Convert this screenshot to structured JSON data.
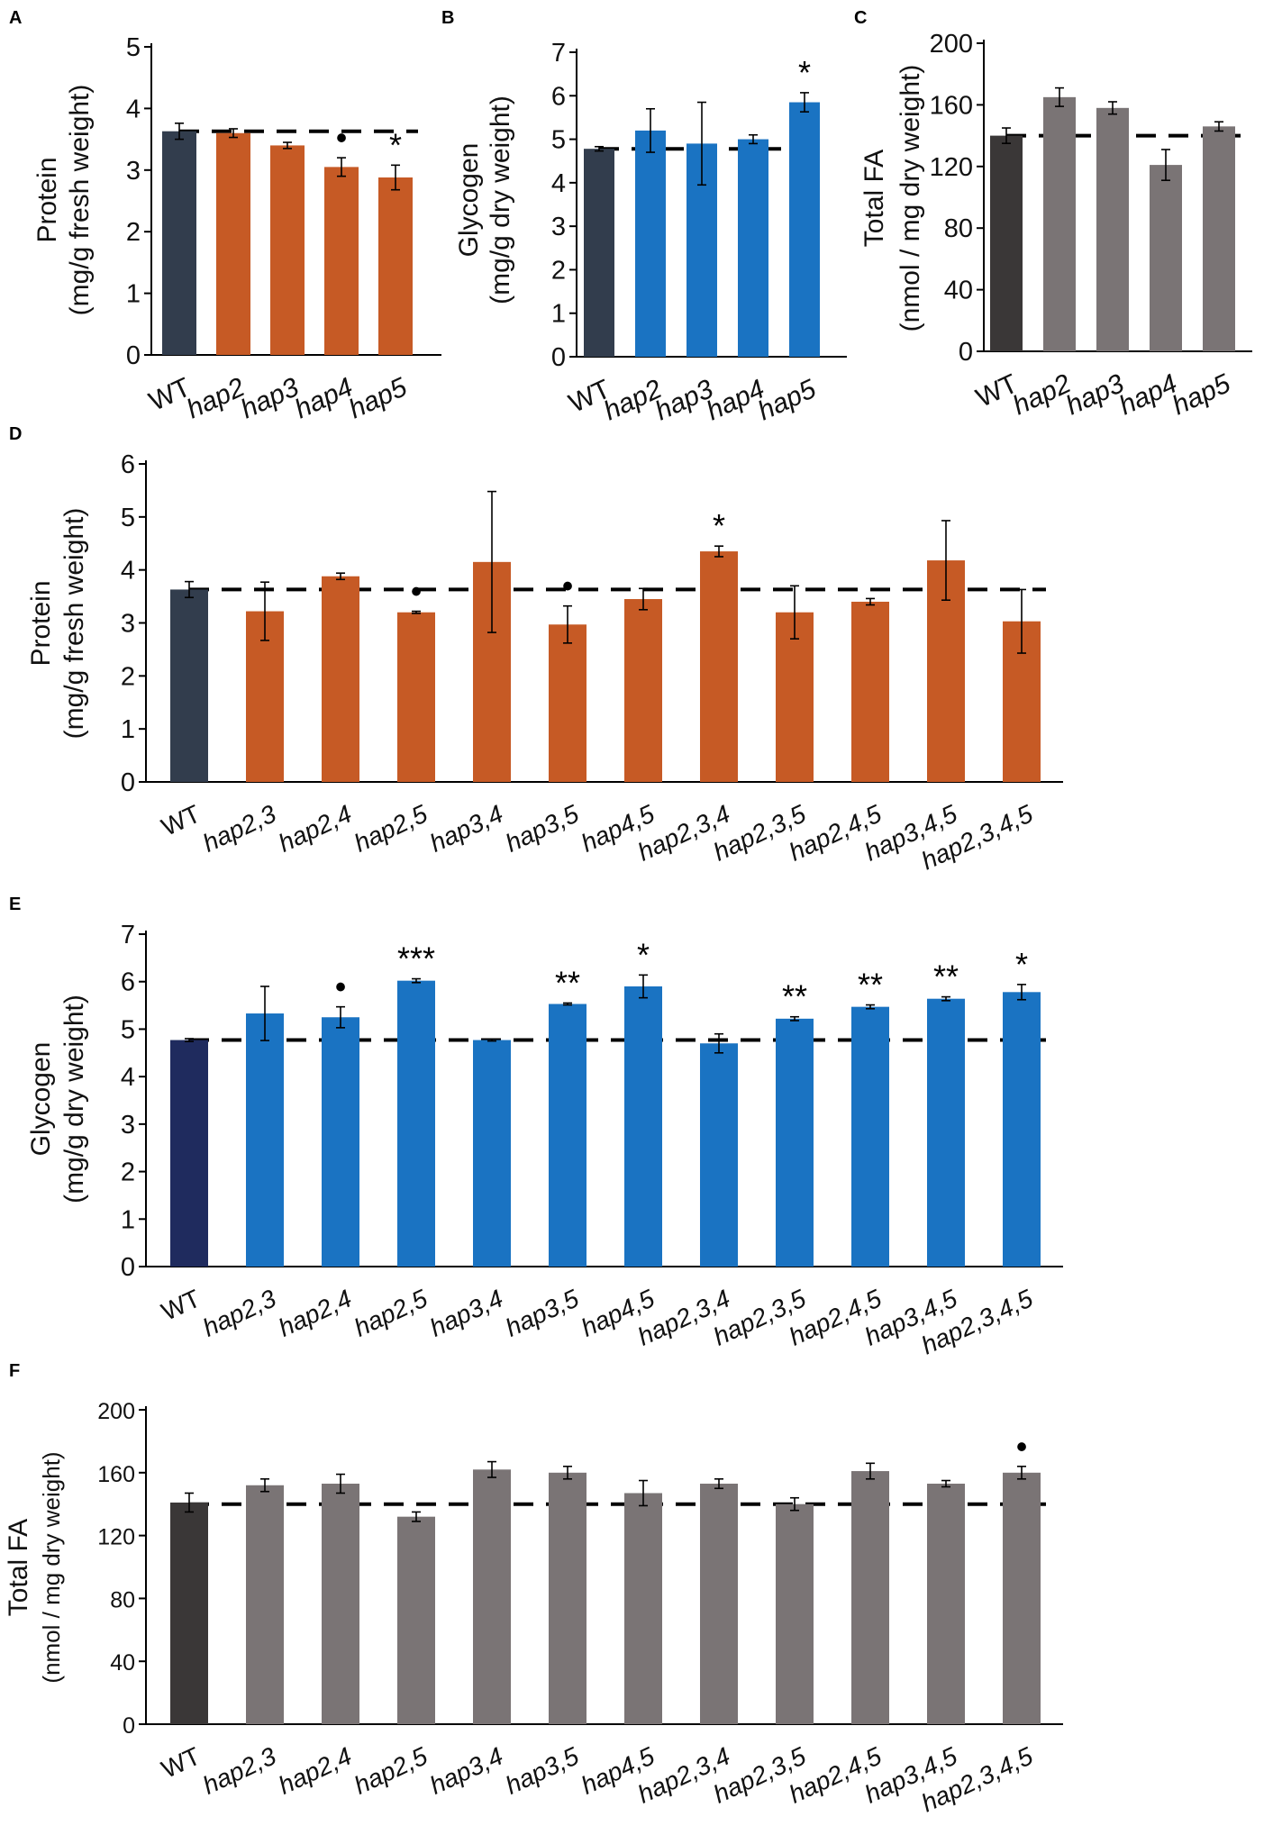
{
  "colors": {
    "wt_dark": "#323d4d",
    "wt_navy": "#1f2b5e",
    "wt_charcoal": "#3a3737",
    "orange": "#c65a25",
    "blue": "#1a73c2",
    "gray": "#7a7475",
    "axis": "#000000"
  },
  "chart_data": [
    {
      "id": "A",
      "letter": "A",
      "type": "bar",
      "title": "",
      "ylabel": [
        "Protein",
        "(mg/g fresh weight)"
      ],
      "ylim": [
        0,
        5
      ],
      "yticks": [
        "0",
        "1",
        "2",
        "3",
        "4",
        "5"
      ],
      "categories": [
        "WT",
        "hap2",
        "hap3",
        "hap4",
        "hap5"
      ],
      "values": [
        3.63,
        3.6,
        3.4,
        3.05,
        2.88
      ],
      "errors": [
        0.13,
        0.07,
        0.05,
        0.15,
        0.2
      ],
      "annotations": [
        "",
        "",
        "",
        "•",
        "*"
      ],
      "reference": 3.63,
      "wt_color": "wt_dark",
      "bar_color": "orange"
    },
    {
      "id": "B",
      "letter": "B",
      "type": "bar",
      "title": "",
      "ylabel": [
        "Glycogen",
        "(mg/g dry weight)"
      ],
      "ylim": [
        0,
        7
      ],
      "yticks": [
        "0",
        "1",
        "2",
        "3",
        "4",
        "5",
        "6",
        "7"
      ],
      "categories": [
        "WT",
        "hap2",
        "hap3",
        "hap4",
        "hap5"
      ],
      "values": [
        4.78,
        5.2,
        4.9,
        5.0,
        5.85
      ],
      "errors": [
        0.05,
        0.5,
        0.95,
        0.1,
        0.22
      ],
      "annotations": [
        "",
        "",
        "",
        "",
        "*"
      ],
      "reference": 4.78,
      "wt_color": "wt_dark",
      "bar_color": "blue"
    },
    {
      "id": "C",
      "letter": "C",
      "type": "bar",
      "title": "",
      "ylabel": [
        "Total FA",
        "(nmol / mg dry weight)"
      ],
      "ylim": [
        0,
        200
      ],
      "yticks": [
        "0",
        "40",
        "80",
        "120",
        "160",
        "200"
      ],
      "categories": [
        "WT",
        "hap2",
        "hap3",
        "hap4",
        "hap5"
      ],
      "values": [
        140,
        165,
        158,
        121,
        146
      ],
      "errors": [
        5,
        6,
        4,
        10,
        3
      ],
      "annotations": [
        "",
        "",
        "",
        "",
        ""
      ],
      "reference": 140,
      "wt_color": "wt_charcoal",
      "bar_color": "gray"
    },
    {
      "id": "D",
      "letter": "D",
      "type": "bar",
      "title": "",
      "ylabel": [
        "Protein",
        "(mg/g fresh weight)"
      ],
      "ylim": [
        0,
        6
      ],
      "yticks": [
        "0",
        "1",
        "2",
        "3",
        "4",
        "5",
        "6"
      ],
      "categories": [
        "WT",
        "hap2,3",
        "hap2,4",
        "hap2,5",
        "hap3,4",
        "hap3,5",
        "hap4,5",
        "hap2,3,4",
        "hap2,3,5",
        "hap2,4,5",
        "hap3,4,5",
        "hap2,3,4,5"
      ],
      "values": [
        3.63,
        3.22,
        3.88,
        3.2,
        4.15,
        2.97,
        3.45,
        4.35,
        3.2,
        3.4,
        4.18,
        3.03
      ],
      "errors": [
        0.15,
        0.55,
        0.06,
        0.02,
        1.33,
        0.35,
        0.2,
        0.1,
        0.5,
        0.06,
        0.75,
        0.6
      ],
      "annotations": [
        "",
        "",
        "",
        "•",
        "",
        "•",
        "",
        "*",
        "",
        "",
        "",
        ""
      ],
      "reference": 3.63,
      "wt_color": "wt_dark",
      "bar_color": "orange"
    },
    {
      "id": "E",
      "letter": "E",
      "type": "bar",
      "title": "",
      "ylabel": [
        "Glycogen",
        "(mg/g dry weight)"
      ],
      "ylim": [
        0,
        7
      ],
      "yticks": [
        "0",
        "1",
        "2",
        "3",
        "4",
        "5",
        "6",
        "7"
      ],
      "categories": [
        "WT",
        "hap2,3",
        "hap2,4",
        "hap2,5",
        "hap3,4",
        "hap3,5",
        "hap4,5",
        "hap2,3,4",
        "hap2,3,5",
        "hap2,4,5",
        "hap3,4,5",
        "hap2,3,4,5"
      ],
      "values": [
        4.77,
        5.33,
        5.25,
        6.02,
        4.77,
        5.53,
        5.9,
        4.7,
        5.22,
        5.47,
        5.64,
        5.78
      ],
      "errors": [
        0.03,
        0.57,
        0.22,
        0.04,
        0.02,
        0.02,
        0.24,
        0.2,
        0.04,
        0.04,
        0.04,
        0.16
      ],
      "annotations": [
        "",
        "",
        "•",
        "***",
        "",
        "**",
        "*",
        "",
        "**",
        "**",
        "**",
        "*"
      ],
      "reference": 4.77,
      "wt_color": "wt_navy",
      "bar_color": "blue"
    },
    {
      "id": "F",
      "letter": "F",
      "type": "bar",
      "title": "",
      "ylabel": [
        "Total FA",
        "(nmol / mg dry weight)"
      ],
      "ylim": [
        0,
        200
      ],
      "yticks": [
        "0",
        "40",
        "80",
        "120",
        "160",
        "200"
      ],
      "categories": [
        "WT",
        "hap2,3",
        "hap2,4",
        "hap2,5",
        "hap3,4",
        "hap3,5",
        "hap4,5",
        "hap2,3,4",
        "hap2,3,5",
        "hap2,4,5",
        "hap3,4,5",
        "hap2,3,4,5"
      ],
      "values": [
        141,
        152,
        153,
        132,
        162,
        160,
        147,
        153,
        140,
        161,
        153,
        160
      ],
      "errors": [
        6,
        4,
        6,
        3,
        5,
        4,
        8,
        3,
        4,
        5,
        2,
        4
      ],
      "annotations": [
        "",
        "",
        "",
        "",
        "",
        "",
        "",
        "",
        "",
        "",
        "",
        "•"
      ],
      "reference": 140,
      "wt_color": "wt_charcoal",
      "bar_color": "gray"
    }
  ]
}
